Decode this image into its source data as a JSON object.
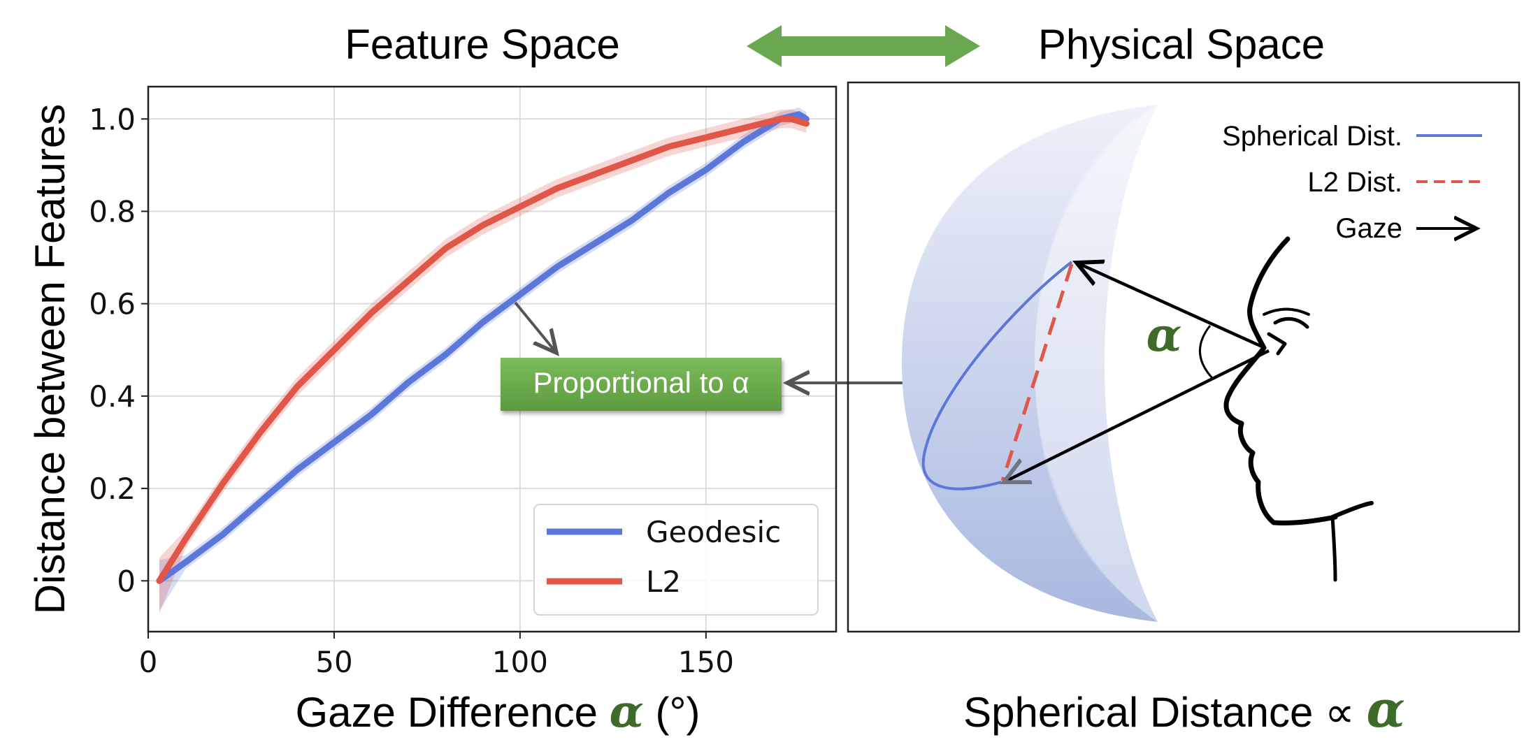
{
  "header": {
    "left_title": "Feature Space",
    "right_title": "Physical Space",
    "arrow_color": "#6aa84f"
  },
  "chart_data": {
    "type": "line",
    "title": "",
    "xlabel_text": "Gaze Difference ",
    "xlabel_symbol": "α",
    "xlabel_unit": " (°)",
    "ylabel": "Distance between Features",
    "xlim": [
      0,
      185
    ],
    "ylim": [
      -0.11,
      1.07
    ],
    "x_ticks": [
      0,
      50,
      100,
      150
    ],
    "x_tick_labels": [
      "0",
      "50",
      "100",
      "150"
    ],
    "y_ticks": [
      0,
      0.2,
      0.4,
      0.6,
      0.8,
      1.0
    ],
    "y_tick_labels": [
      "0",
      "0.2",
      "0.4",
      "0.6",
      "0.8",
      "1.0"
    ],
    "grid": true,
    "legend_position": "bottom-right",
    "series": [
      {
        "name": "Geodesic",
        "color": "#5b77d9",
        "x": [
          3,
          10,
          20,
          30,
          40,
          50,
          60,
          70,
          80,
          90,
          100,
          110,
          120,
          130,
          140,
          150,
          160,
          170,
          175,
          177
        ],
        "y": [
          0.0,
          0.04,
          0.1,
          0.17,
          0.24,
          0.3,
          0.36,
          0.43,
          0.49,
          0.56,
          0.62,
          0.68,
          0.73,
          0.78,
          0.84,
          0.89,
          0.95,
          1.0,
          1.01,
          1.0
        ],
        "band": 0.015
      },
      {
        "name": "L2",
        "color": "#e0574a",
        "x": [
          3,
          10,
          20,
          30,
          40,
          50,
          60,
          70,
          80,
          90,
          100,
          110,
          120,
          130,
          140,
          150,
          160,
          170,
          173,
          177
        ],
        "y": [
          0.0,
          0.09,
          0.21,
          0.32,
          0.42,
          0.5,
          0.58,
          0.65,
          0.72,
          0.77,
          0.81,
          0.85,
          0.88,
          0.91,
          0.94,
          0.96,
          0.98,
          1.0,
          1.0,
          0.99
        ],
        "band": 0.02
      }
    ],
    "annotation": "Proportional to α"
  },
  "diagram": {
    "legend": [
      {
        "label": "Spherical Dist.",
        "color": "#5b77d9",
        "style": "solid"
      },
      {
        "label": "L2 Dist.",
        "color": "#e0574a",
        "style": "dashed"
      },
      {
        "label": "Gaze",
        "color": "#000000",
        "style": "arrow"
      }
    ],
    "angle_label": "α",
    "caption_text": "Spherical Distance ∝ ",
    "caption_symbol": "α"
  }
}
